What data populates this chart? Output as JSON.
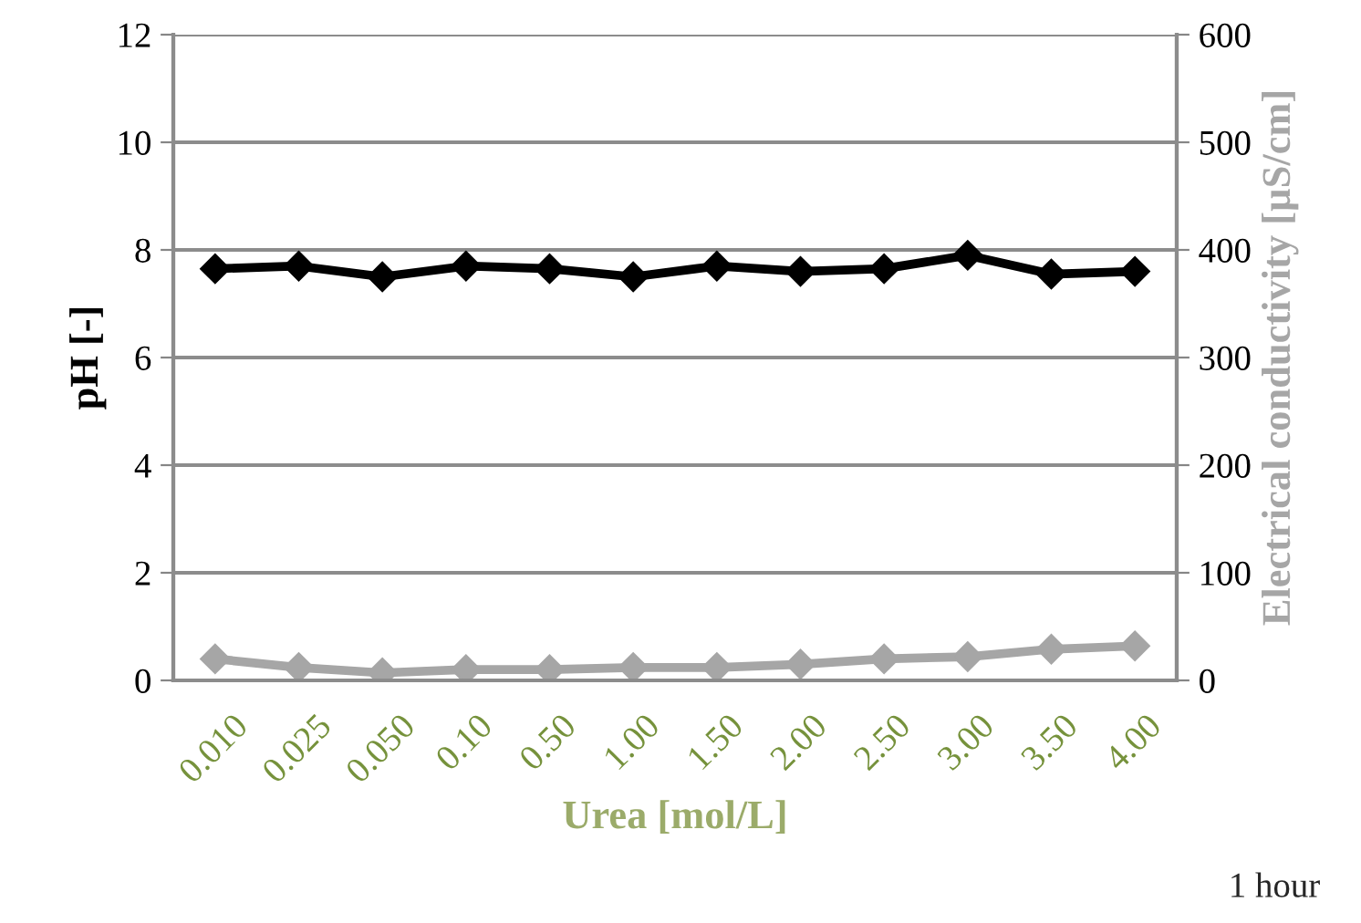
{
  "chart_data": {
    "type": "line",
    "categories": [
      "0.010",
      "0.025",
      "0.050",
      "0.10",
      "0.50",
      "1.00",
      "1.50",
      "2.00",
      "2.50",
      "3.00",
      "3.50",
      "4.00"
    ],
    "series": [
      {
        "color": "#000000",
        "values": [
          7.65,
          7.7,
          7.5,
          7.7,
          7.65,
          7.5,
          7.7,
          7.6,
          7.65,
          7.9,
          7.55,
          7.6
        ]
      },
      {
        "color": "#a6a6a6",
        "axis": "y2",
        "values": [
          20,
          12,
          7,
          10,
          10,
          12,
          12,
          15,
          20,
          22,
          29,
          32
        ]
      }
    ],
    "xlabel": "Urea [mol/L]",
    "ylabel": "pH [-]",
    "y2label": "Electrical conductivity [µS/cm]",
    "ylim": [
      0,
      12
    ],
    "yticks": [
      0,
      2,
      4,
      6,
      8,
      10,
      12
    ],
    "y2lim": [
      0,
      600
    ],
    "y2ticks": [
      0,
      100,
      200,
      300,
      400,
      500,
      600
    ],
    "grid": "y",
    "marker": "diamond",
    "line_style": "solid",
    "annotations": [
      "1 hour"
    ]
  }
}
